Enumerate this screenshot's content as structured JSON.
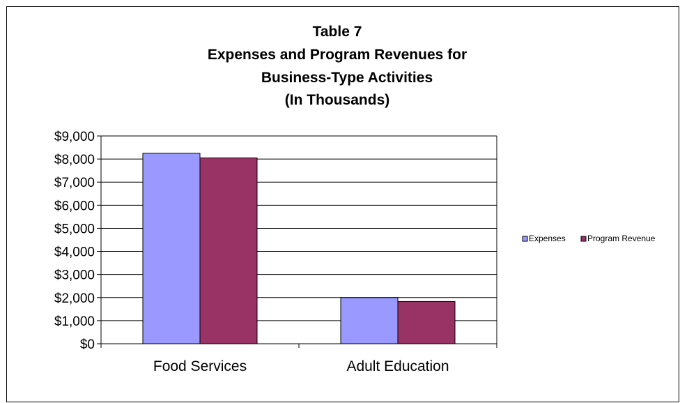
{
  "chart_data": {
    "type": "bar",
    "title_lines": [
      "Table 7",
      "Expenses and Program Revenues for",
      "Business-Type   Activities",
      "(In Thousands)"
    ],
    "categories": [
      "Food Services",
      "Adult Education"
    ],
    "series": [
      {
        "name": "Expenses",
        "values": [
          8250,
          2000
        ],
        "color": "#9999ff"
      },
      {
        "name": "Program Revenue",
        "values": [
          8050,
          1830
        ],
        "color": "#993366"
      }
    ],
    "ylim": [
      0,
      9000
    ],
    "yticks": [
      0,
      1000,
      2000,
      3000,
      4000,
      5000,
      6000,
      7000,
      8000,
      9000
    ],
    "ytick_labels": [
      "$0",
      "$1,000",
      "$2,000",
      "$3,000",
      "$4,000",
      "$5,000",
      "$6,000",
      "$7,000",
      "$8,000",
      "$9,000"
    ],
    "grid": true,
    "legend_position": "right"
  }
}
